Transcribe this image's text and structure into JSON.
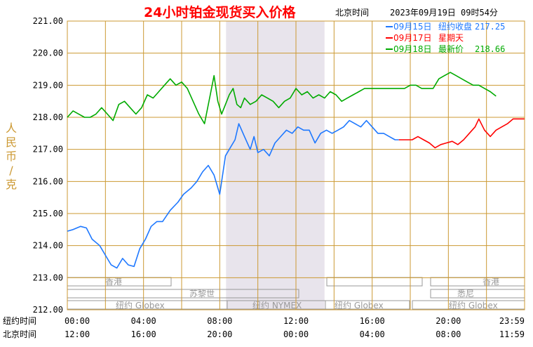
{
  "title": "24小时铂金现货买入价格",
  "timezone_label": "北京时间",
  "timestamp": "2023年09月19日 09时54分",
  "ylabel": "人民币/克",
  "colors": {
    "background": "#FFFFFF",
    "grid": "#CC9933",
    "title": "#FF0000",
    "session_shade": "#E8E4EC",
    "session_box": "#999999",
    "session_text": "#999999"
  },
  "legend": [
    {
      "date": "09月15日",
      "label": "纽约收盘",
      "value": "217.25",
      "color": "#1E78FF"
    },
    {
      "date": "09月17日",
      "label": "星期天",
      "value": "",
      "color": "#FF0000"
    },
    {
      "date": "09月18日",
      "label": "最新价",
      "value": "218.66",
      "color": "#00AA00"
    }
  ],
  "x_axis": {
    "row1_label": "纽约时间",
    "row2_label": "北京时间",
    "ny_ticks": [
      "00:00",
      "04:00",
      "08:00",
      "12:00",
      "16:00",
      "20:00",
      "23:59"
    ],
    "bj_ticks": [
      "12:00",
      "16:00",
      "20:00",
      "00:00",
      "04:00",
      "08:00",
      "11:59"
    ]
  },
  "sessions": {
    "hongkong": "香港",
    "zurich": "苏黎世",
    "ny_globex": "纽约 Globex",
    "ny_nymex": "纽约 NYMEX",
    "sydney": "悉尼"
  },
  "chart_data": {
    "type": "line",
    "title": "24小时铂金现货买入价格",
    "xlabel": "纽约时间 / 北京时间",
    "ylabel": "人民币/克",
    "xlim": [
      0,
      24
    ],
    "ylim": [
      212.0,
      221.0
    ],
    "yticks": [
      "212.00",
      "213.00",
      "214.00",
      "215.00",
      "216.00",
      "217.00",
      "218.00",
      "219.00",
      "220.00",
      "221.00"
    ],
    "grid": true,
    "legend_position": "top-right",
    "series": [
      {
        "name": "09月15日",
        "color": "#1E78FF",
        "x": [
          0,
          0.3,
          0.7,
          1.0,
          1.3,
          1.7,
          2.0,
          2.3,
          2.6,
          2.9,
          3.2,
          3.5,
          3.8,
          4.1,
          4.4,
          4.7,
          5.0,
          5.4,
          5.8,
          6.1,
          6.5,
          6.8,
          7.1,
          7.4,
          7.7,
          8.0,
          8.3,
          8.5,
          8.8,
          9.0,
          9.3,
          9.6,
          9.8,
          10.0,
          10.3,
          10.6,
          10.9,
          11.2,
          11.5,
          11.8,
          12.1,
          12.4,
          12.7,
          13.0,
          13.3,
          13.6,
          13.9,
          14.2,
          14.5,
          14.8,
          15.1,
          15.4,
          15.7,
          16.0,
          16.3,
          16.6,
          16.9,
          17.2,
          17.4
        ],
        "y": [
          214.45,
          214.5,
          214.6,
          214.55,
          214.2,
          214.0,
          213.7,
          213.4,
          213.3,
          213.6,
          213.4,
          213.35,
          213.9,
          214.2,
          214.6,
          214.75,
          214.75,
          215.1,
          215.35,
          215.6,
          215.8,
          216.0,
          216.3,
          216.5,
          216.2,
          215.6,
          216.8,
          217.0,
          217.3,
          217.8,
          217.4,
          217.0,
          217.4,
          216.9,
          217.0,
          216.8,
          217.2,
          217.4,
          217.6,
          217.5,
          217.7,
          217.6,
          217.6,
          217.2,
          217.5,
          217.6,
          217.5,
          217.6,
          217.7,
          217.9,
          217.8,
          217.7,
          217.9,
          217.7,
          217.5,
          217.5,
          217.4,
          217.3,
          217.3
        ]
      },
      {
        "name": "09月17日",
        "color": "#FF0000",
        "x": [
          17.4,
          17.8,
          18.1,
          18.4,
          18.7,
          19.0,
          19.3,
          19.6,
          19.9,
          20.2,
          20.5,
          20.8,
          21.1,
          21.4,
          21.6,
          21.9,
          22.2,
          22.5,
          22.8,
          23.1,
          23.4,
          23.7,
          23.99
        ],
        "y": [
          217.3,
          217.3,
          217.3,
          217.4,
          217.3,
          217.2,
          217.05,
          217.15,
          217.2,
          217.25,
          217.15,
          217.3,
          217.5,
          217.7,
          217.95,
          217.6,
          217.4,
          217.6,
          217.7,
          217.8,
          217.95,
          217.95,
          217.95
        ]
      },
      {
        "name": "09月18日",
        "color": "#00AA00",
        "x": [
          0,
          0.3,
          0.6,
          0.9,
          1.2,
          1.5,
          1.8,
          2.1,
          2.4,
          2.7,
          3.0,
          3.3,
          3.6,
          3.9,
          4.2,
          4.5,
          4.8,
          5.1,
          5.4,
          5.7,
          6.0,
          6.3,
          6.6,
          6.9,
          7.2,
          7.5,
          7.7,
          7.9,
          8.1,
          8.3,
          8.5,
          8.7,
          8.9,
          9.1,
          9.3,
          9.6,
          9.9,
          10.2,
          10.5,
          10.8,
          11.1,
          11.4,
          11.7,
          12.0,
          12.3,
          12.6,
          12.9,
          13.2,
          13.5,
          13.8,
          14.1,
          14.4,
          14.7,
          15.0,
          15.3,
          15.6,
          15.9,
          16.2,
          16.5,
          16.8,
          17.1,
          17.4,
          17.7,
          18.0,
          18.3,
          18.6,
          18.9,
          19.2,
          19.5,
          19.8,
          20.1,
          20.4,
          20.7,
          21.0,
          21.3,
          21.6,
          21.9,
          22.2,
          22.5
        ],
        "y": [
          218.0,
          218.2,
          218.1,
          218.0,
          218.0,
          218.1,
          218.3,
          218.1,
          217.9,
          218.4,
          218.5,
          218.3,
          218.1,
          218.3,
          218.7,
          218.6,
          218.8,
          219.0,
          219.2,
          219.0,
          219.1,
          218.9,
          218.5,
          218.1,
          217.8,
          218.7,
          219.3,
          218.5,
          218.1,
          218.4,
          218.7,
          218.9,
          218.4,
          218.3,
          218.6,
          218.4,
          218.5,
          218.7,
          218.6,
          218.5,
          218.3,
          218.5,
          218.6,
          218.9,
          218.7,
          218.8,
          218.6,
          218.7,
          218.6,
          218.8,
          218.7,
          218.5,
          218.6,
          218.7,
          218.8,
          218.9,
          218.9,
          218.9,
          218.9,
          218.9,
          218.9,
          218.9,
          218.9,
          219.0,
          219.0,
          218.9,
          218.9,
          218.9,
          219.2,
          219.3,
          219.4,
          219.3,
          219.2,
          219.1,
          219.0,
          219.0,
          218.9,
          218.8,
          218.66
        ]
      }
    ]
  }
}
